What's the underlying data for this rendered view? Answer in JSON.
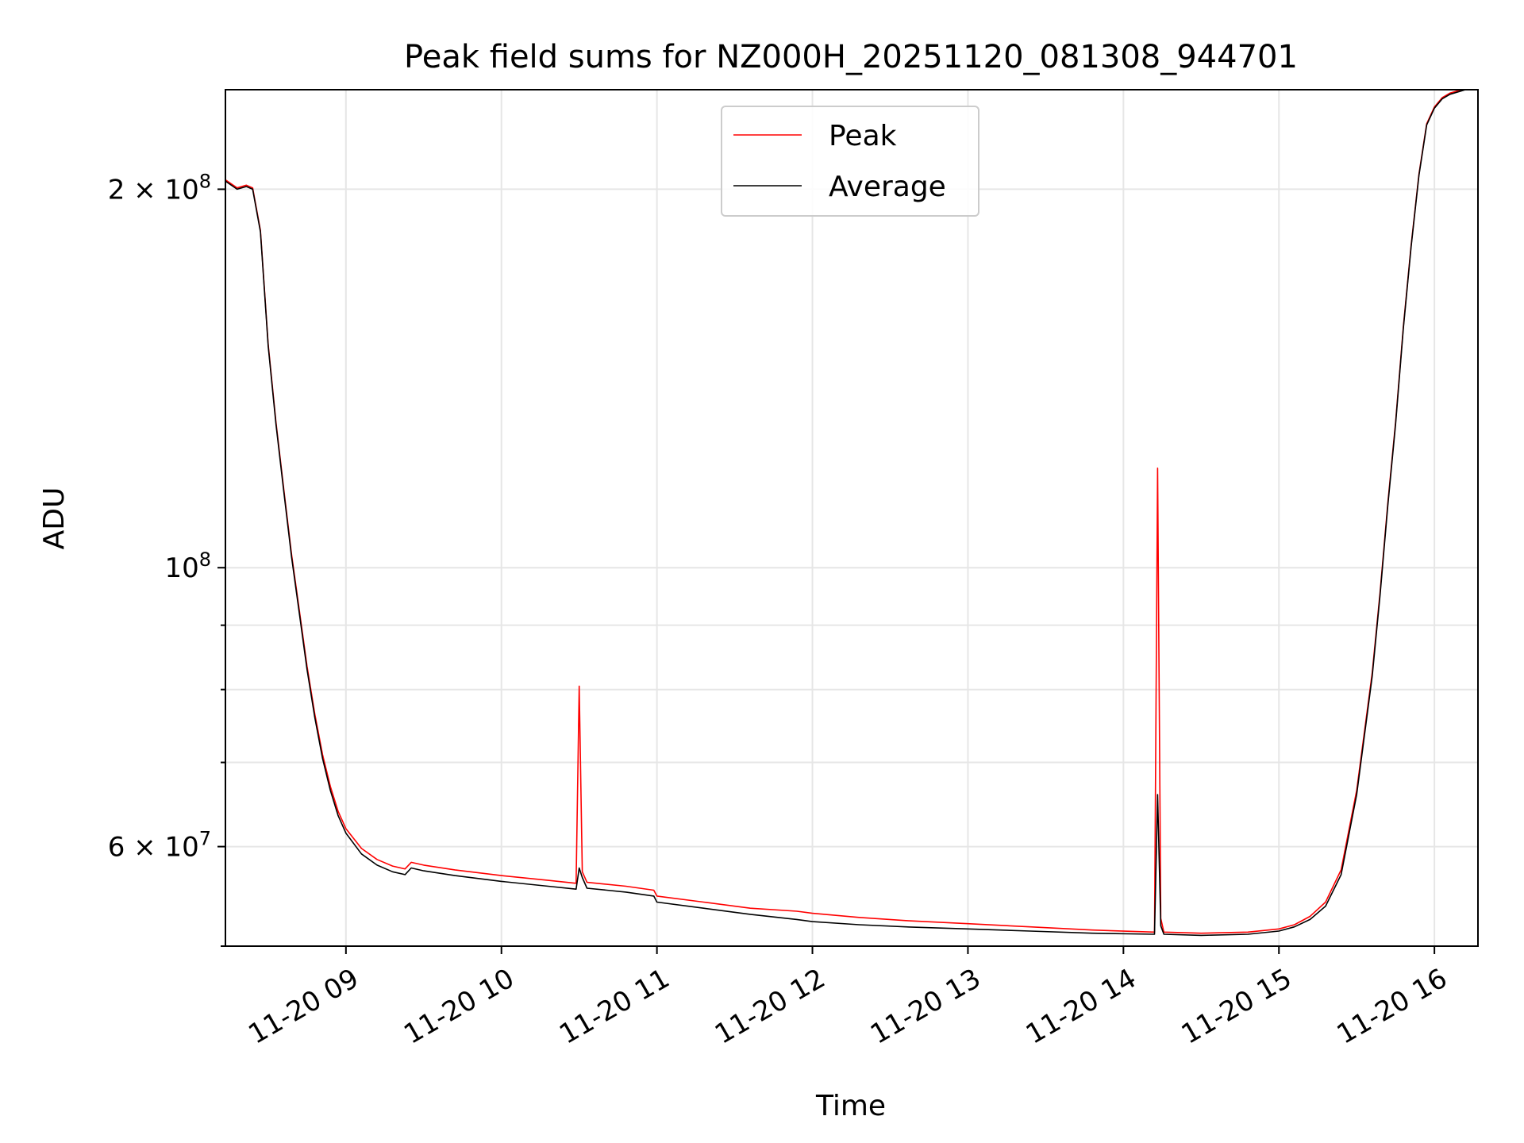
{
  "chart_data": {
    "type": "line",
    "title": "Peak field sums for NZ000H_20251120_081308_944701",
    "xlabel": "Time",
    "ylabel": "ADU",
    "yscale": "log",
    "ylim": [
      50000000,
      240000000
    ],
    "xlim_hours": [
      8.225,
      16.28
    ],
    "grid": true,
    "legend_position": "top-center",
    "x_ticks": [
      {
        "hour": 9,
        "label": "11-20 09"
      },
      {
        "hour": 10,
        "label": "11-20 10"
      },
      {
        "hour": 11,
        "label": "11-20 11"
      },
      {
        "hour": 12,
        "label": "11-20 12"
      },
      {
        "hour": 13,
        "label": "11-20 13"
      },
      {
        "hour": 14,
        "label": "11-20 14"
      },
      {
        "hour": 15,
        "label": "11-20 15"
      },
      {
        "hour": 16,
        "label": "11-20 16"
      }
    ],
    "y_major_ticks": [
      {
        "value": 60000000,
        "mantissa": "6",
        "exp": "7"
      },
      {
        "value": 100000000,
        "mantissa": "",
        "exp": "8"
      },
      {
        "value": 200000000,
        "mantissa": "2",
        "exp": "8"
      }
    ],
    "y_minor_ticks": [
      50000000,
      70000000,
      80000000,
      90000000
    ],
    "series": [
      {
        "name": "Average",
        "color": "#000000",
        "x": [
          8.225,
          8.3,
          8.36,
          8.4,
          8.45,
          8.5,
          8.55,
          8.6,
          8.65,
          8.7,
          8.75,
          8.8,
          8.85,
          8.9,
          8.95,
          9.0,
          9.1,
          9.2,
          9.3,
          9.38,
          9.42,
          9.5,
          9.7,
          10.0,
          10.3,
          10.48,
          10.5,
          10.52,
          10.55,
          10.8,
          10.98,
          11.0,
          11.3,
          11.6,
          11.9,
          12.0,
          12.3,
          12.6,
          13.0,
          13.4,
          13.8,
          14.2,
          14.22,
          14.24,
          14.26,
          14.5,
          14.8,
          15.0,
          15.1,
          15.2,
          15.3,
          15.4,
          15.5,
          15.6,
          15.65,
          15.7,
          15.75,
          15.8,
          15.85,
          15.9,
          15.95,
          16.0,
          16.05,
          16.1,
          16.2,
          16.28
        ],
        "y": [
          203000000,
          200000000,
          201000000,
          200000000,
          185000000,
          150000000,
          130000000,
          115000000,
          102000000,
          92000000,
          83000000,
          76000000,
          70500000,
          66500000,
          63500000,
          61500000,
          59200000,
          58000000,
          57300000,
          57000000,
          57700000,
          57400000,
          56900000,
          56300000,
          55800000,
          55500000,
          57700000,
          56700000,
          55600000,
          55200000,
          54800000,
          54200000,
          53600000,
          53000000,
          52500000,
          52300000,
          52000000,
          51800000,
          51600000,
          51400000,
          51200000,
          51100000,
          66000000,
          51900000,
          51100000,
          51000000,
          51100000,
          51400000,
          51800000,
          52500000,
          53800000,
          57000000,
          66000000,
          82000000,
          95000000,
          112000000,
          130000000,
          155000000,
          180000000,
          205000000,
          225000000,
          232000000,
          236000000,
          238000000,
          240000000,
          241000000
        ]
      },
      {
        "name": "Peak",
        "color": "#ff0000",
        "x": [
          8.225,
          8.3,
          8.36,
          8.4,
          8.45,
          8.5,
          8.55,
          8.6,
          8.65,
          8.7,
          8.75,
          8.8,
          8.85,
          8.9,
          8.95,
          9.0,
          9.1,
          9.2,
          9.3,
          9.38,
          9.42,
          9.5,
          9.7,
          10.0,
          10.3,
          10.48,
          10.5,
          10.52,
          10.55,
          10.8,
          10.98,
          11.0,
          11.3,
          11.6,
          11.9,
          12.0,
          12.3,
          12.6,
          13.0,
          13.4,
          13.8,
          14.2,
          14.22,
          14.24,
          14.26,
          14.5,
          14.8,
          15.0,
          15.1,
          15.2,
          15.3,
          15.4,
          15.5,
          15.6,
          15.65,
          15.7,
          15.75,
          15.8,
          15.85,
          15.9,
          15.95,
          16.0,
          16.05,
          16.1,
          16.2,
          16.28
        ],
        "y": [
          203500000,
          200500000,
          201500000,
          200500000,
          185500000,
          150500000,
          130500000,
          115500000,
          102500000,
          92500000,
          83500000,
          76500000,
          71000000,
          67000000,
          64000000,
          62000000,
          59800000,
          58600000,
          57900000,
          57600000,
          58300000,
          58000000,
          57500000,
          56900000,
          56400000,
          56100000,
          80500000,
          57300000,
          56200000,
          55800000,
          55400000,
          54800000,
          54200000,
          53600000,
          53300000,
          53100000,
          52700000,
          52400000,
          52100000,
          51800000,
          51500000,
          51300000,
          120000000,
          52600000,
          51300000,
          51200000,
          51300000,
          51600000,
          52000000,
          52800000,
          54200000,
          57500000,
          66500000,
          82500000,
          95500000,
          112500000,
          130500000,
          155500000,
          180500000,
          205500000,
          225500000,
          232500000,
          236500000,
          238500000,
          240500000,
          241500000
        ]
      }
    ]
  }
}
